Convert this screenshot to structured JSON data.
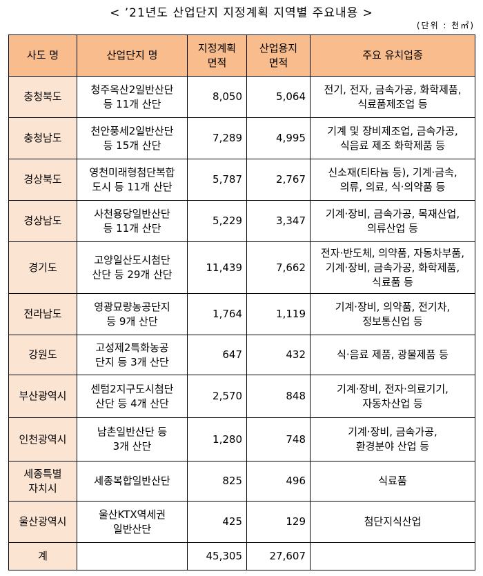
{
  "title": "< ’21년도 산업단지 지정계획 지역별 주요내용 >",
  "unit": "(단위 : 천㎡)",
  "headers": {
    "region": "사도 명",
    "complex": "산업단지 명",
    "plan_area": "지정계획\n면적",
    "land_area": "산업용지\n면적",
    "industries": "주요 유치업종"
  },
  "rows": [
    {
      "region": "충청북도",
      "complex": "청주옥산2일반산단\n등 11개 산단",
      "plan_area": "8,050",
      "land_area": "5,064",
      "industries": "전기, 전자, 금속가공, 화학제품,\n식료품제조업 등"
    },
    {
      "region": "충청남도",
      "complex": "천안풍세2일반산단\n등 15개 산단",
      "plan_area": "7,289",
      "land_area": "4,995",
      "industries": "기계 및 장비제조업, 금속가공,\n식음료 제조 화학제품 등"
    },
    {
      "region": "경상북도",
      "complex": "영천미래형첨단복합\n도시 등 11개 산단",
      "plan_area": "5,787",
      "land_area": "2,767",
      "industries": "신소재(티타늄 등), 기계·금속,\n의류, 의료, 식·의약품 등"
    },
    {
      "region": "경상남도",
      "complex": "사천용당일반산단\n등 11개 산단",
      "plan_area": "5,229",
      "land_area": "3,347",
      "industries": "기계·장비, 금속가공, 목재산업,\n의류산업 등"
    },
    {
      "region": "경기도",
      "complex": "고양일산도시첨단\n산단 등 29개 산단",
      "plan_area": "11,439",
      "land_area": "7,662",
      "industries": "전자·반도체, 의약품, 자동차부품,\n기계·장비, 금속가공, 화학제품,\n식료품 등"
    },
    {
      "region": "전라남도",
      "complex": "영광묘량농공단지\n등 9개 산단",
      "plan_area": "1,764",
      "land_area": "1,119",
      "industries": "기계·장비, 의약품, 전기차,\n정보통신업 등"
    },
    {
      "region": "강원도",
      "complex": "고성제2특화농공\n단지 등 3개 산단",
      "plan_area": "647",
      "land_area": "432",
      "industries": "식·음료 제품, 광물제품 등"
    },
    {
      "region": "부산광역시",
      "complex": "센텀2지구도시첨단\n산단 등 4개 산단",
      "plan_area": "2,570",
      "land_area": "848",
      "industries": "기계·장비, 전자·의료기기,\n자동차산업 등"
    },
    {
      "region": "인천광역시",
      "complex": "남촌일반산단 등\n3개 산단",
      "plan_area": "1,280",
      "land_area": "748",
      "industries": "기계·장비, 금속가공,\n환경분야 산업 등"
    },
    {
      "region": "세종특별\n자치시",
      "complex": "세종복합일반산단",
      "plan_area": "825",
      "land_area": "496",
      "industries": "식료품"
    },
    {
      "region": "울산광역시",
      "complex": "울산KTX역세권\n일반산단",
      "plan_area": "425",
      "land_area": "129",
      "industries": "첨단지식산업"
    }
  ],
  "total": {
    "region": "계",
    "plan_area": "45,305",
    "land_area": "27,607"
  },
  "colors": {
    "header_bg": "#f9bc8d",
    "region_bg": "#fce4d3"
  }
}
